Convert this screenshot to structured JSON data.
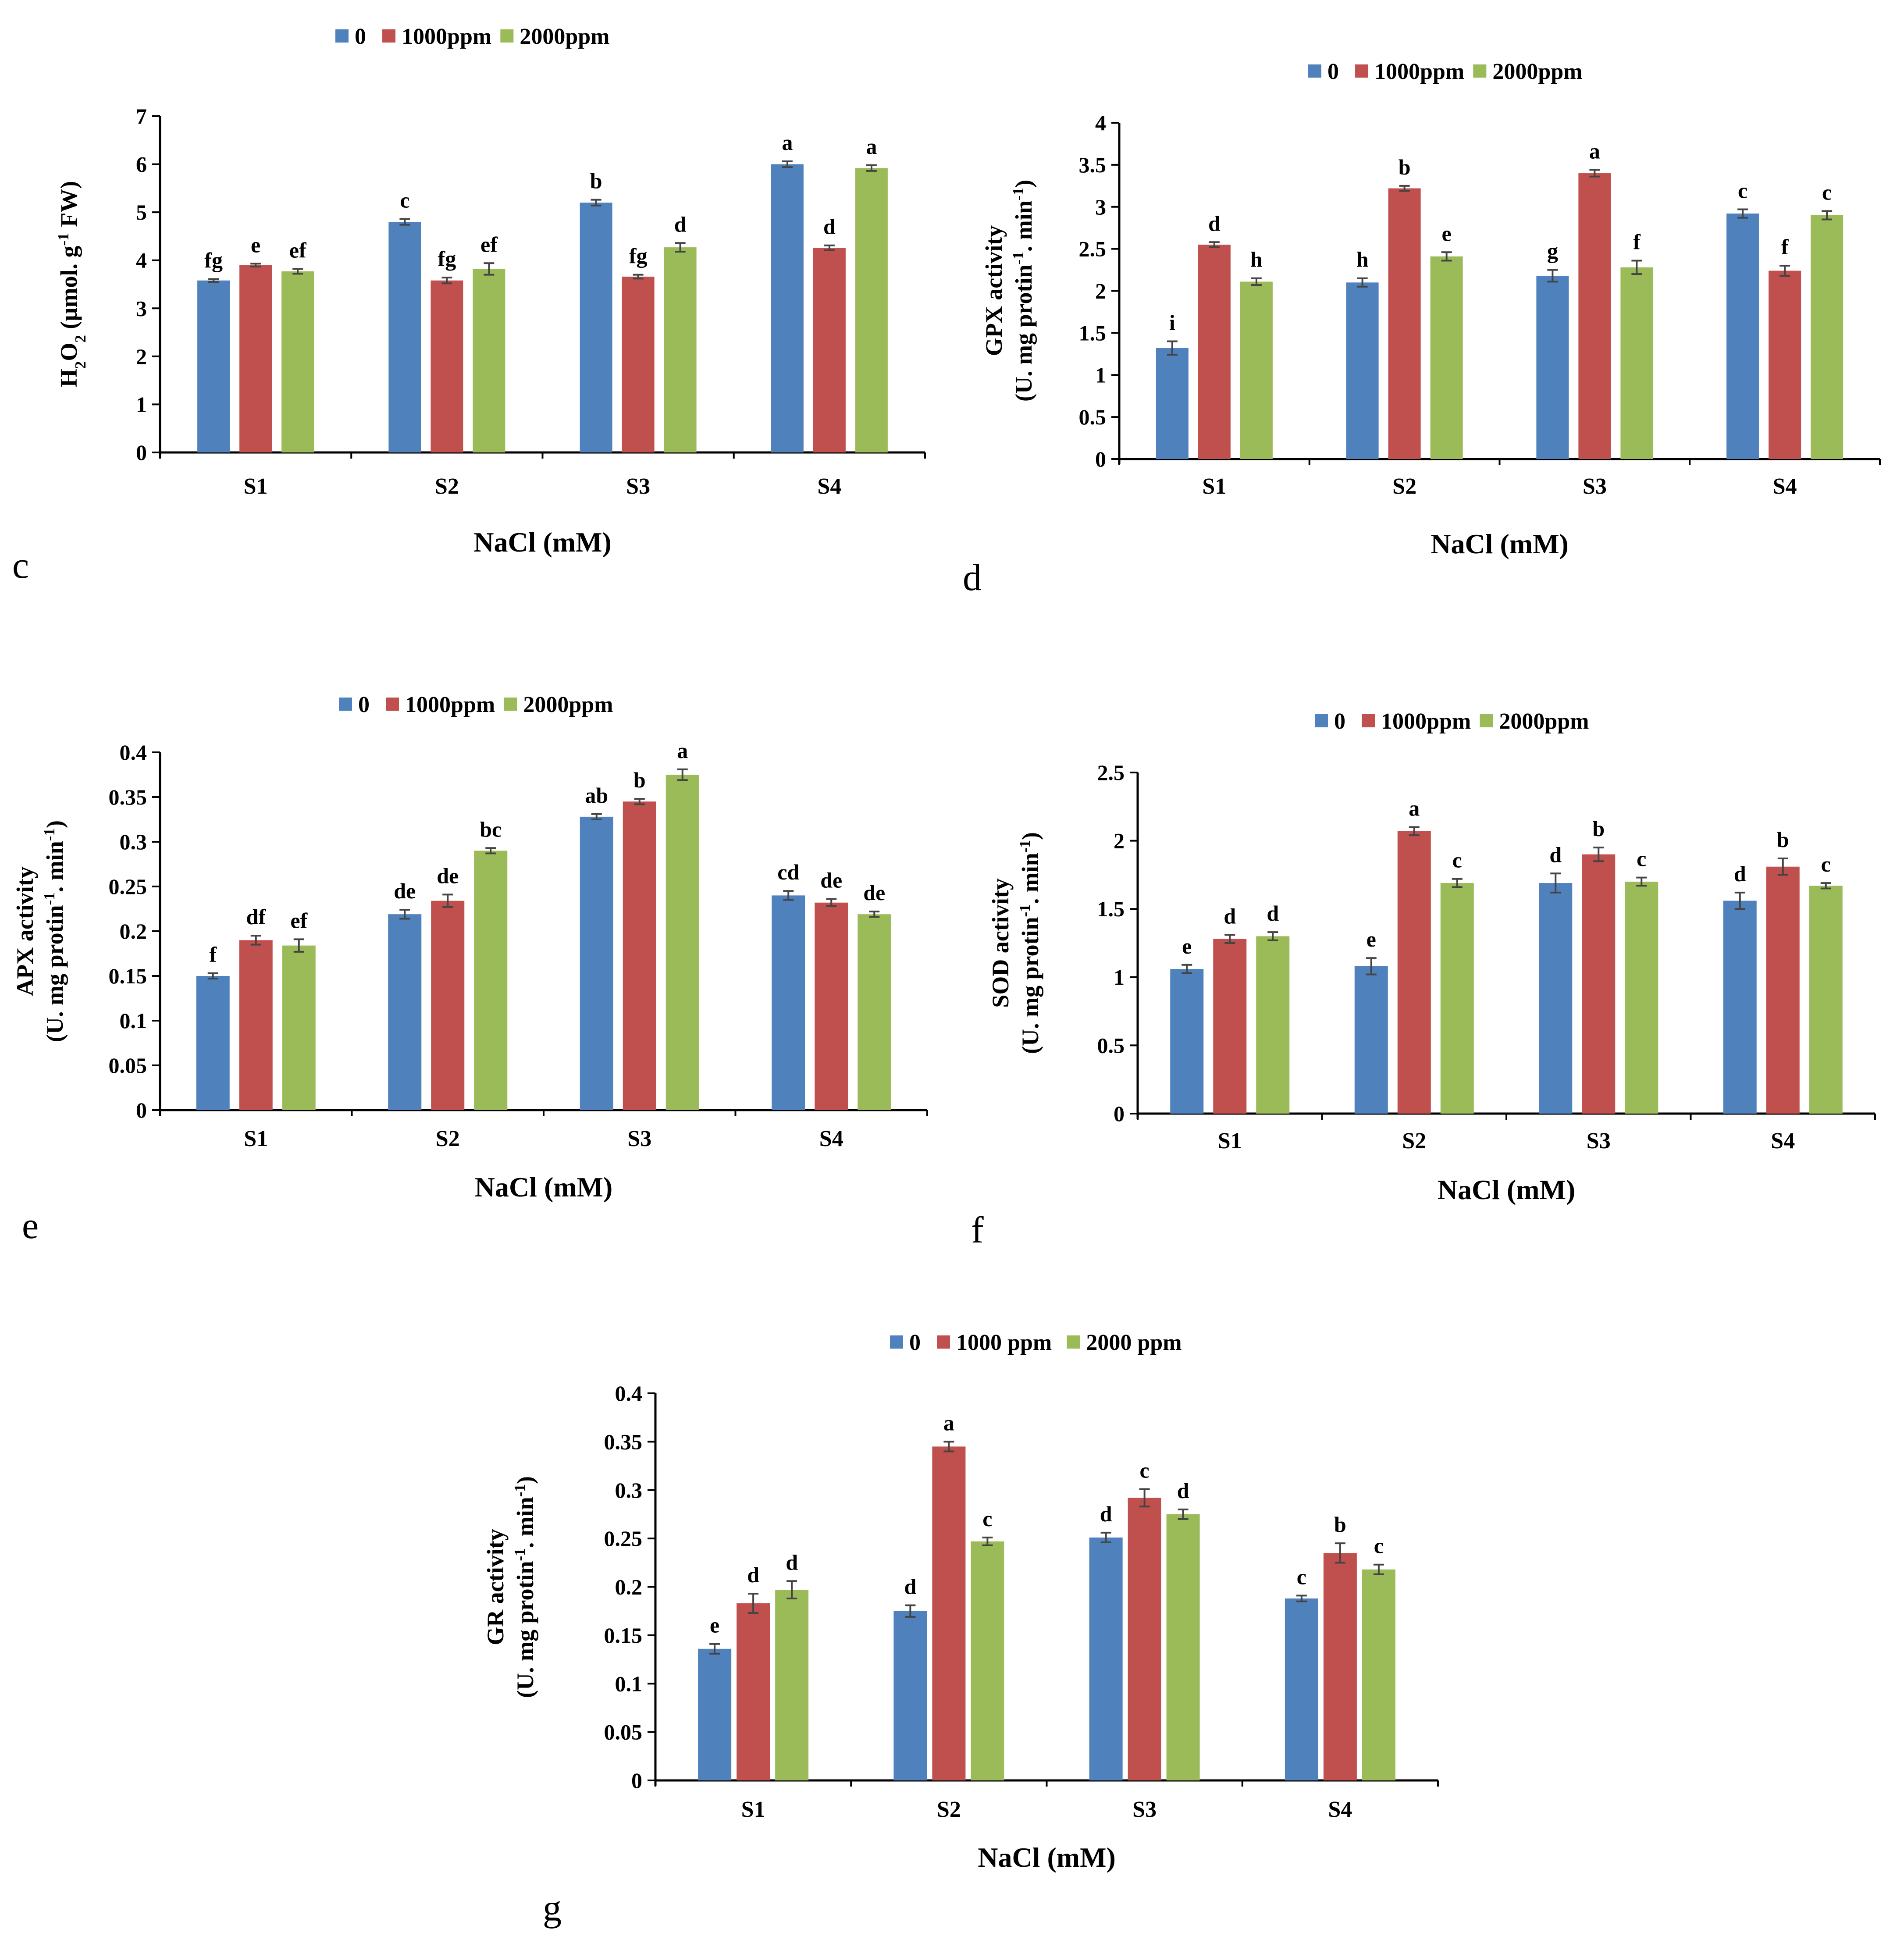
{
  "colors": {
    "c0": "#4f81bd",
    "c1000": "#c0504d",
    "c2000": "#9bbb59"
  },
  "chart_data": [
    {
      "id": "c",
      "type": "bar",
      "panel_label": "c",
      "ylabel_lines": [
        "H2O2 (µmol. g-1 FW)"
      ],
      "ylabel_rich": [
        [
          {
            "t": "H"
          },
          {
            "t": "2",
            "sub": true
          },
          {
            "t": "O"
          },
          {
            "t": "2",
            "sub": true
          },
          {
            "t": " (µmol. g"
          },
          {
            "t": "-1",
            "sup": true
          },
          {
            "t": " FW)"
          }
        ]
      ],
      "xlabel": "NaCl (mM)",
      "categories": [
        "S1",
        "S2",
        "S3",
        "S4"
      ],
      "ylim": [
        0,
        7
      ],
      "yticks": [
        "0",
        "1",
        "2",
        "3",
        "4",
        "5",
        "6",
        "7"
      ],
      "legend": [
        "0",
        "1000ppm",
        "2000ppm"
      ],
      "series": [
        {
          "name": "0",
          "values": [
            3.58,
            4.8,
            5.2,
            6.0
          ],
          "errors": [
            0.03,
            0.06,
            0.06,
            0.06
          ],
          "letters": [
            "fg",
            "c",
            "b",
            "a"
          ]
        },
        {
          "name": "1000ppm",
          "values": [
            3.9,
            3.58,
            3.66,
            4.26
          ],
          "errors": [
            0.03,
            0.06,
            0.04,
            0.05
          ],
          "letters": [
            "e",
            "fg",
            "fg",
            "d"
          ]
        },
        {
          "name": "2000ppm",
          "values": [
            3.77,
            3.82,
            4.27,
            5.92
          ],
          "errors": [
            0.05,
            0.12,
            0.09,
            0.06
          ],
          "letters": [
            "ef",
            "ef",
            "d",
            "a"
          ]
        }
      ]
    },
    {
      "id": "d",
      "type": "bar",
      "panel_label": "d",
      "ylabel_lines": [
        "GPX activity",
        "(U. mg protin-1. min-1)"
      ],
      "ylabel_rich": [
        [
          {
            "t": "GPX activity"
          }
        ],
        [
          {
            "t": "(U. mg protin"
          },
          {
            "t": "-1",
            "sup": true
          },
          {
            "t": ". min"
          },
          {
            "t": "-1",
            "sup": true
          },
          {
            "t": ")"
          }
        ]
      ],
      "xlabel": "NaCl (mM)",
      "categories": [
        "S1",
        "S2",
        "S3",
        "S4"
      ],
      "ylim": [
        0,
        4
      ],
      "yticks": [
        "0",
        "0.5",
        "1",
        "1.5",
        "2",
        "2.5",
        "3",
        "3.5",
        "4"
      ],
      "legend": [
        "0",
        "1000ppm",
        "2000ppm"
      ],
      "series": [
        {
          "name": "0",
          "values": [
            1.32,
            2.1,
            2.18,
            2.92
          ],
          "errors": [
            0.08,
            0.05,
            0.07,
            0.05
          ],
          "letters": [
            "i",
            "h",
            "g",
            "c"
          ]
        },
        {
          "name": "1000ppm",
          "values": [
            2.55,
            3.22,
            3.4,
            2.24
          ],
          "errors": [
            0.03,
            0.03,
            0.04,
            0.06
          ],
          "letters": [
            "d",
            "b",
            "a",
            "f"
          ]
        },
        {
          "name": "2000ppm",
          "values": [
            2.11,
            2.41,
            2.28,
            2.9
          ],
          "errors": [
            0.04,
            0.05,
            0.08,
            0.05
          ],
          "letters": [
            "h",
            "e",
            "f",
            "c"
          ]
        }
      ]
    },
    {
      "id": "e",
      "type": "bar",
      "panel_label": "e",
      "ylabel_lines": [
        "APX activity",
        "(U. mg protin-1. min-1)"
      ],
      "ylabel_rich": [
        [
          {
            "t": "APX activity"
          }
        ],
        [
          {
            "t": "(U. mg protin"
          },
          {
            "t": "-1",
            "sup": true
          },
          {
            "t": ". min"
          },
          {
            "t": "-1",
            "sup": true
          },
          {
            "t": ")"
          }
        ]
      ],
      "xlabel": "NaCl (mM)",
      "categories": [
        "S1",
        "S2",
        "S3",
        "S4"
      ],
      "ylim": [
        0,
        0.4
      ],
      "yticks": [
        "0",
        "0.05",
        "0.1",
        "0.15",
        "0.2",
        "0.25",
        "0.3",
        "0.35",
        "0.4"
      ],
      "legend": [
        "0",
        "1000ppm",
        "2000ppm"
      ],
      "series": [
        {
          "name": "0",
          "values": [
            0.15,
            0.219,
            0.328,
            0.24
          ],
          "errors": [
            0.003,
            0.005,
            0.003,
            0.005
          ],
          "letters": [
            "f",
            "de",
            "ab",
            "cd"
          ]
        },
        {
          "name": "1000ppm",
          "values": [
            0.19,
            0.234,
            0.345,
            0.232
          ],
          "errors": [
            0.005,
            0.007,
            0.003,
            0.004
          ],
          "letters": [
            "df",
            "de",
            "b",
            "de"
          ]
        },
        {
          "name": "2000ppm",
          "values": [
            0.184,
            0.29,
            0.375,
            0.219
          ],
          "errors": [
            0.007,
            0.003,
            0.006,
            0.003
          ],
          "letters": [
            "ef",
            "bc",
            "a",
            "de"
          ]
        }
      ]
    },
    {
      "id": "f",
      "type": "bar",
      "panel_label": "f",
      "ylabel_lines": [
        "SOD activity",
        "(U. mg protin-1. min-1)"
      ],
      "ylabel_rich": [
        [
          {
            "t": "SOD activity"
          }
        ],
        [
          {
            "t": "(U. mg protin"
          },
          {
            "t": "-1",
            "sup": true
          },
          {
            "t": ". min"
          },
          {
            "t": "-1",
            "sup": true
          },
          {
            "t": ")"
          }
        ]
      ],
      "xlabel": "NaCl (mM)",
      "categories": [
        "S1",
        "S2",
        "S3",
        "S4"
      ],
      "ylim": [
        0,
        2.5
      ],
      "yticks": [
        "0",
        "0.5",
        "1",
        "1.5",
        "2",
        "2.5"
      ],
      "legend": [
        "0",
        "1000ppm",
        "2000ppm"
      ],
      "series": [
        {
          "name": "0",
          "values": [
            1.06,
            1.08,
            1.69,
            1.56
          ],
          "errors": [
            0.03,
            0.06,
            0.07,
            0.06
          ],
          "letters": [
            "e",
            "e",
            "d",
            "d"
          ]
        },
        {
          "name": "1000ppm",
          "values": [
            1.28,
            2.07,
            1.9,
            1.81
          ],
          "errors": [
            0.03,
            0.03,
            0.05,
            0.06
          ],
          "letters": [
            "d",
            "a",
            "b",
            "b"
          ]
        },
        {
          "name": "2000ppm",
          "values": [
            1.3,
            1.69,
            1.7,
            1.67
          ],
          "errors": [
            0.03,
            0.03,
            0.03,
            0.02
          ],
          "letters": [
            "d",
            "c",
            "c",
            "c"
          ]
        }
      ]
    },
    {
      "id": "g",
      "type": "bar",
      "panel_label": "g",
      "ylabel_lines": [
        "GR activity",
        "(U. mg protin-1. min-1)"
      ],
      "ylabel_rich": [
        [
          {
            "t": "GR activity"
          }
        ],
        [
          {
            "t": "(U. mg protin"
          },
          {
            "t": "-1",
            "sup": true
          },
          {
            "t": ". min"
          },
          {
            "t": "-1",
            "sup": true
          },
          {
            "t": ")"
          }
        ]
      ],
      "xlabel": "NaCl (mM)",
      "categories": [
        "S1",
        "S2",
        "S3",
        "S4"
      ],
      "ylim": [
        0,
        0.4
      ],
      "yticks": [
        "0",
        "0.05",
        "0.1",
        "0.15",
        "0.2",
        "0.25",
        "0.3",
        "0.35",
        "0.4"
      ],
      "legend": [
        "0",
        "1000 ppm",
        "2000 ppm"
      ],
      "series": [
        {
          "name": "0",
          "values": [
            0.136,
            0.175,
            0.251,
            0.188
          ],
          "errors": [
            0.005,
            0.006,
            0.005,
            0.003
          ],
          "letters": [
            "e",
            "d",
            "d",
            "c"
          ]
        },
        {
          "name": "1000 ppm",
          "values": [
            0.183,
            0.345,
            0.292,
            0.235
          ],
          "errors": [
            0.01,
            0.005,
            0.009,
            0.01
          ],
          "letters": [
            "d",
            "a",
            "c",
            "b"
          ]
        },
        {
          "name": "2000 ppm",
          "values": [
            0.197,
            0.247,
            0.275,
            0.218
          ],
          "errors": [
            0.009,
            0.004,
            0.005,
            0.005
          ],
          "letters": [
            "d",
            "c",
            "d",
            "c"
          ]
        }
      ]
    }
  ]
}
